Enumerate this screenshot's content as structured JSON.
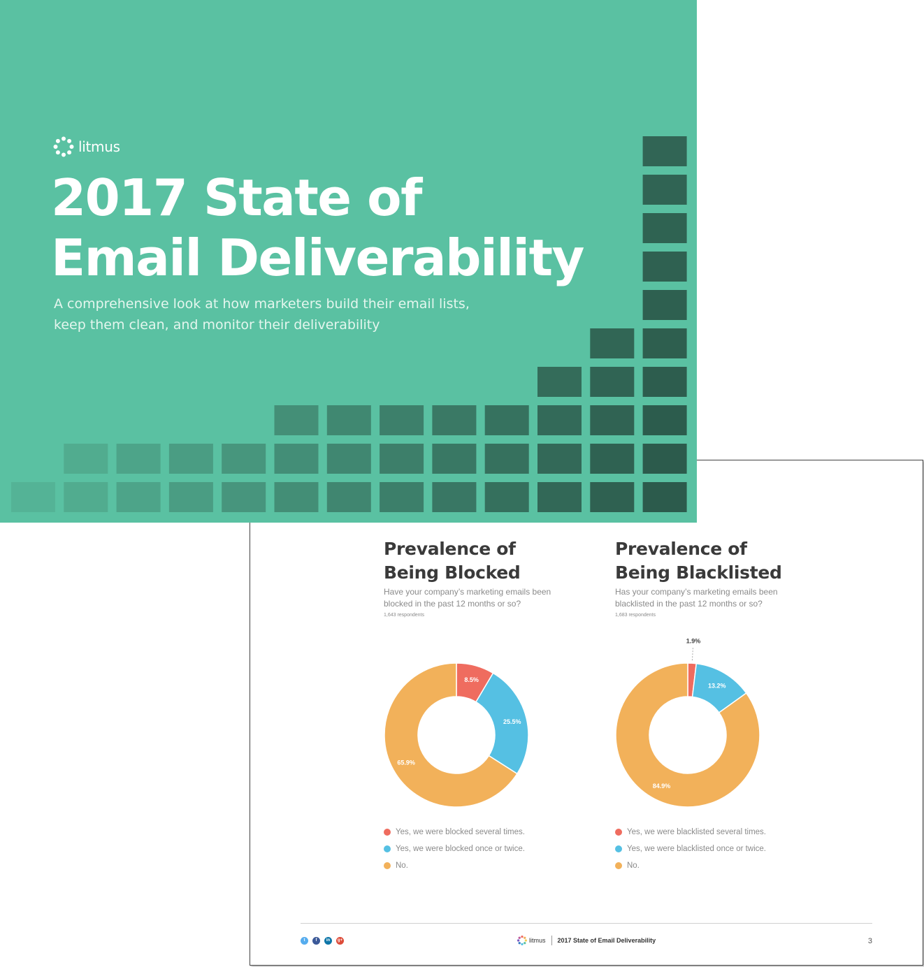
{
  "cover": {
    "logo_label": "litmus",
    "title_line1": "2017 State of",
    "title_line2": "Email Deliverability",
    "subtitle_line1": "A comprehensive look at how marketers build their email lists,",
    "subtitle_line2": "keep them clean, and monitor their deliverability",
    "colors": {
      "background": "#5ac1a2",
      "tile_light": "#55b597",
      "tile_dark": "#2c5b4c"
    }
  },
  "page": {
    "page_number": "3",
    "footer": {
      "logo_label": "litmus",
      "title": "2017 State of Email Deliverability"
    },
    "social_icons": [
      "twitter-icon",
      "facebook-icon",
      "linkedin-icon",
      "google-plus-icon"
    ]
  },
  "chart_data": [
    {
      "type": "pie",
      "title_line1": "Prevalence of",
      "title_line2": "Being Blocked",
      "question": "Have your company’s marketing emails been blocked in the past 12 months or so?",
      "respondents": "1,643 respondents",
      "slices": [
        {
          "label": "Yes, we were blocked several times.",
          "value": 8.5,
          "display": "8.5%",
          "color": "#ef6c5f"
        },
        {
          "label": "Yes, we were blocked once or twice.",
          "value": 25.5,
          "display": "25.5%",
          "color": "#55c0e3"
        },
        {
          "label": "No.",
          "value": 65.9,
          "display": "65.9%",
          "color": "#f2b15a"
        }
      ]
    },
    {
      "type": "pie",
      "title_line1": "Prevalence of",
      "title_line2": "Being Blacklisted",
      "question": "Has your company’s marketing emails been blacklisted in the past 12 months or so?",
      "respondents": "1,683 respondents",
      "slices": [
        {
          "label": "Yes, we were blacklisted several times.",
          "value": 1.9,
          "display": "1.9%",
          "color": "#ef6c5f"
        },
        {
          "label": "Yes, we were blacklisted once or twice.",
          "value": 13.2,
          "display": "13.2%",
          "color": "#55c0e3"
        },
        {
          "label": "No.",
          "value": 84.9,
          "display": "84.9%",
          "color": "#f2b15a"
        }
      ]
    }
  ]
}
